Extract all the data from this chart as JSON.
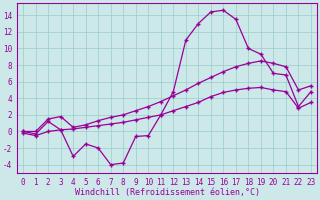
{
  "xlabel": "Windchill (Refroidissement éolien,°C)",
  "background_color": "#cce8e8",
  "grid_color": "#99cccc",
  "line_color": "#990099",
  "x_data": [
    0,
    1,
    2,
    3,
    4,
    5,
    6,
    7,
    8,
    9,
    10,
    11,
    12,
    13,
    14,
    15,
    16,
    17,
    18,
    19,
    20,
    21,
    22,
    23
  ],
  "line1": [
    0.0,
    -0.3,
    1.2,
    0.2,
    -3.0,
    -1.5,
    -2.0,
    -4.0,
    -3.8,
    -0.6,
    -0.5,
    2.0,
    4.8,
    11.0,
    13.0,
    14.4,
    14.6,
    13.5,
    10.0,
    9.3,
    7.0,
    6.8,
    3.0,
    4.8
  ],
  "line2": [
    0.0,
    0.0,
    1.5,
    1.8,
    0.5,
    0.8,
    1.3,
    1.7,
    2.0,
    2.5,
    3.0,
    3.6,
    4.3,
    5.0,
    5.8,
    6.5,
    7.2,
    7.8,
    8.2,
    8.5,
    8.2,
    7.8,
    5.0,
    5.5
  ],
  "line3": [
    -0.2,
    -0.5,
    0.0,
    0.2,
    0.3,
    0.5,
    0.7,
    0.9,
    1.1,
    1.4,
    1.7,
    2.0,
    2.5,
    3.0,
    3.5,
    4.2,
    4.7,
    5.0,
    5.2,
    5.3,
    5.0,
    4.8,
    2.8,
    3.5
  ],
  "ylim": [
    -5,
    15
  ],
  "xlim": [
    -0.5,
    23.5
  ],
  "yticks": [
    -4,
    -2,
    0,
    2,
    4,
    6,
    8,
    10,
    12,
    14
  ],
  "xticks": [
    0,
    1,
    2,
    3,
    4,
    5,
    6,
    7,
    8,
    9,
    10,
    11,
    12,
    13,
    14,
    15,
    16,
    17,
    18,
    19,
    20,
    21,
    22,
    23
  ],
  "tick_fontsize": 5.5,
  "label_fontsize": 6.0
}
